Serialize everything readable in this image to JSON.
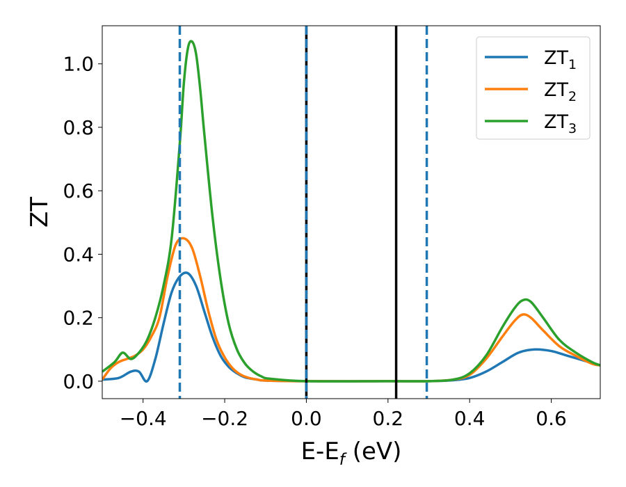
{
  "chart_data": {
    "type": "line",
    "title": "",
    "xlabel": "E-E",
    "xlabel_sub": "f",
    "xlabel_unit": " (eV)",
    "ylabel": "ZT",
    "xlim": [
      -0.5,
      0.72
    ],
    "ylim": [
      -0.055,
      1.12
    ],
    "xticks": [
      -0.4,
      -0.2,
      0.0,
      0.2,
      0.4,
      0.6
    ],
    "xtick_labels": [
      "−0.4",
      "−0.2",
      "0.0",
      "0.2",
      "0.4",
      "0.6"
    ],
    "yticks": [
      0.0,
      0.2,
      0.4,
      0.6,
      0.8,
      1.0
    ],
    "ytick_labels": [
      "0.0",
      "0.2",
      "0.4",
      "0.6",
      "0.8",
      "1.0"
    ],
    "grid": false,
    "legend_position": "top-right",
    "series": [
      {
        "name": "ZT",
        "name_sub": "1",
        "color": "#1f77b4",
        "x": [
          -0.5,
          -0.46,
          -0.43,
          -0.41,
          -0.39,
          -0.37,
          -0.35,
          -0.33,
          -0.31,
          -0.29,
          -0.27,
          -0.25,
          -0.23,
          -0.21,
          -0.19,
          -0.17,
          -0.15,
          -0.12,
          -0.1,
          0.0,
          0.2,
          0.3,
          0.36,
          0.4,
          0.44,
          0.48,
          0.52,
          0.56,
          0.6,
          0.64,
          0.68,
          0.72
        ],
        "y": [
          0.005,
          0.01,
          0.03,
          0.03,
          0.0,
          0.07,
          0.18,
          0.28,
          0.33,
          0.34,
          0.3,
          0.22,
          0.14,
          0.08,
          0.045,
          0.025,
          0.012,
          0.005,
          0.002,
          0.0,
          0.0,
          0.0,
          0.003,
          0.01,
          0.03,
          0.06,
          0.09,
          0.1,
          0.095,
          0.08,
          0.065,
          0.05
        ]
      },
      {
        "name": "ZT",
        "name_sub": "2",
        "color": "#ff7f0e",
        "x": [
          -0.5,
          -0.48,
          -0.46,
          -0.44,
          -0.42,
          -0.4,
          -0.38,
          -0.36,
          -0.34,
          -0.32,
          -0.3,
          -0.28,
          -0.26,
          -0.24,
          -0.22,
          -0.2,
          -0.18,
          -0.16,
          -0.14,
          -0.12,
          -0.1,
          0.0,
          0.2,
          0.3,
          0.36,
          0.4,
          0.44,
          0.48,
          0.51,
          0.53,
          0.55,
          0.58,
          0.62,
          0.66,
          0.7,
          0.72
        ],
        "y": [
          0.005,
          0.04,
          0.06,
          0.07,
          0.08,
          0.1,
          0.14,
          0.2,
          0.33,
          0.43,
          0.45,
          0.42,
          0.33,
          0.22,
          0.13,
          0.075,
          0.04,
          0.02,
          0.01,
          0.005,
          0.002,
          0.0,
          0.0,
          0.0,
          0.005,
          0.02,
          0.07,
          0.14,
          0.19,
          0.21,
          0.2,
          0.16,
          0.11,
          0.08,
          0.055,
          0.05
        ]
      },
      {
        "name": "ZT",
        "name_sub": "3",
        "color": "#2ca02c",
        "x": [
          -0.5,
          -0.47,
          -0.45,
          -0.43,
          -0.41,
          -0.39,
          -0.37,
          -0.35,
          -0.33,
          -0.31,
          -0.3,
          -0.29,
          -0.28,
          -0.27,
          -0.26,
          -0.25,
          -0.23,
          -0.21,
          -0.19,
          -0.17,
          -0.15,
          -0.13,
          -0.11,
          -0.09,
          0.0,
          0.2,
          0.3,
          0.36,
          0.4,
          0.44,
          0.48,
          0.51,
          0.53,
          0.55,
          0.58,
          0.62,
          0.66,
          0.7,
          0.72
        ],
        "y": [
          0.03,
          0.06,
          0.09,
          0.07,
          0.09,
          0.13,
          0.2,
          0.3,
          0.45,
          0.75,
          0.94,
          1.05,
          1.07,
          1.03,
          0.92,
          0.78,
          0.52,
          0.32,
          0.18,
          0.1,
          0.055,
          0.03,
          0.015,
          0.008,
          0.0,
          0.0,
          0.0,
          0.005,
          0.025,
          0.08,
          0.17,
          0.23,
          0.255,
          0.25,
          0.2,
          0.13,
          0.09,
          0.06,
          0.05
        ]
      }
    ],
    "vlines": [
      {
        "x": -0.31,
        "color": "#1f77b4",
        "style": "dashed"
      },
      {
        "x": 0.0,
        "color": "#000000",
        "style": "solid"
      },
      {
        "x": 0.0,
        "color": "#1f77b4",
        "style": "dashed"
      },
      {
        "x": 0.22,
        "color": "#000000",
        "style": "solid"
      },
      {
        "x": 0.295,
        "color": "#1f77b4",
        "style": "dashed"
      }
    ]
  }
}
